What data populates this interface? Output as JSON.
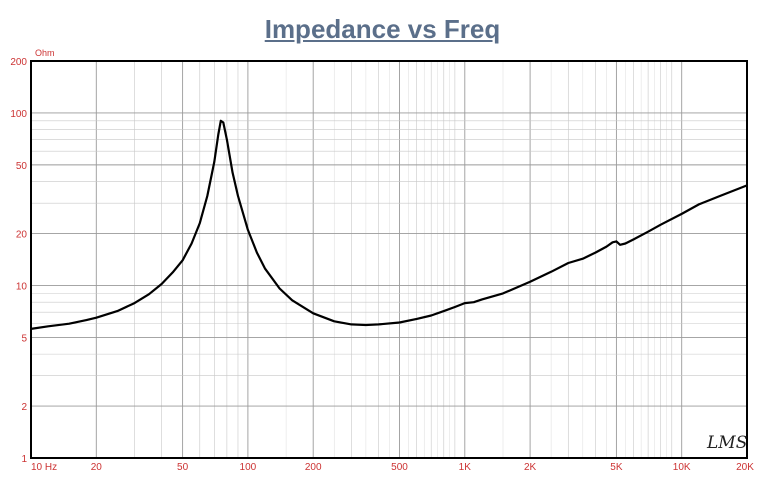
{
  "chart_data": {
    "type": "line",
    "title": "Impedance vs Freq",
    "ylabel": "Ohm",
    "xscale": "log",
    "yscale": "log",
    "xlim": [
      10,
      20000
    ],
    "ylim": [
      1,
      200
    ],
    "grid": true,
    "x_tick_labels": [
      {
        "value": 10,
        "label": "10 Hz"
      },
      {
        "value": 20,
        "label": "20"
      },
      {
        "value": 50,
        "label": "50"
      },
      {
        "value": 100,
        "label": "100"
      },
      {
        "value": 200,
        "label": "200"
      },
      {
        "value": 500,
        "label": "500"
      },
      {
        "value": 1000,
        "label": "1K"
      },
      {
        "value": 2000,
        "label": "2K"
      },
      {
        "value": 5000,
        "label": "5K"
      },
      {
        "value": 10000,
        "label": "10K"
      },
      {
        "value": 20000,
        "label": "20K"
      }
    ],
    "y_tick_labels": [
      {
        "value": 1,
        "label": "1"
      },
      {
        "value": 2,
        "label": "2"
      },
      {
        "value": 5,
        "label": "5"
      },
      {
        "value": 10,
        "label": "10"
      },
      {
        "value": 20,
        "label": "20"
      },
      {
        "value": 50,
        "label": "50"
      },
      {
        "value": 100,
        "label": "100"
      },
      {
        "value": 200,
        "label": "200"
      }
    ],
    "series": [
      {
        "color": "#000000",
        "x": [
          10,
          12,
          15,
          18,
          20,
          25,
          30,
          35,
          40,
          45,
          50,
          55,
          60,
          65,
          70,
          73,
          75,
          77,
          80,
          85,
          90,
          100,
          110,
          120,
          140,
          160,
          200,
          250,
          300,
          350,
          400,
          500,
          600,
          700,
          800,
          900,
          1000,
          1100,
          1200,
          1500,
          2000,
          2500,
          3000,
          3500,
          4000,
          4500,
          4800,
          5000,
          5200,
          5500,
          6000,
          7000,
          8000,
          10000,
          12000,
          15000,
          20000
        ],
        "y": [
          5.6,
          5.8,
          6.0,
          6.3,
          6.5,
          7.1,
          7.9,
          8.9,
          10.2,
          11.9,
          14.0,
          17.5,
          23.0,
          33.0,
          52.0,
          75.0,
          90.0,
          88.0,
          70.0,
          45.0,
          33.0,
          21.0,
          15.5,
          12.5,
          9.6,
          8.2,
          6.9,
          6.2,
          5.95,
          5.9,
          5.95,
          6.1,
          6.4,
          6.7,
          7.1,
          7.5,
          7.9,
          8.0,
          8.3,
          9.0,
          10.5,
          12.0,
          13.5,
          14.3,
          15.5,
          16.8,
          17.8,
          18.0,
          17.2,
          17.5,
          18.5,
          20.5,
          22.5,
          26.0,
          29.5,
          33.0,
          38.0
        ]
      }
    ]
  },
  "watermark": "LMS"
}
